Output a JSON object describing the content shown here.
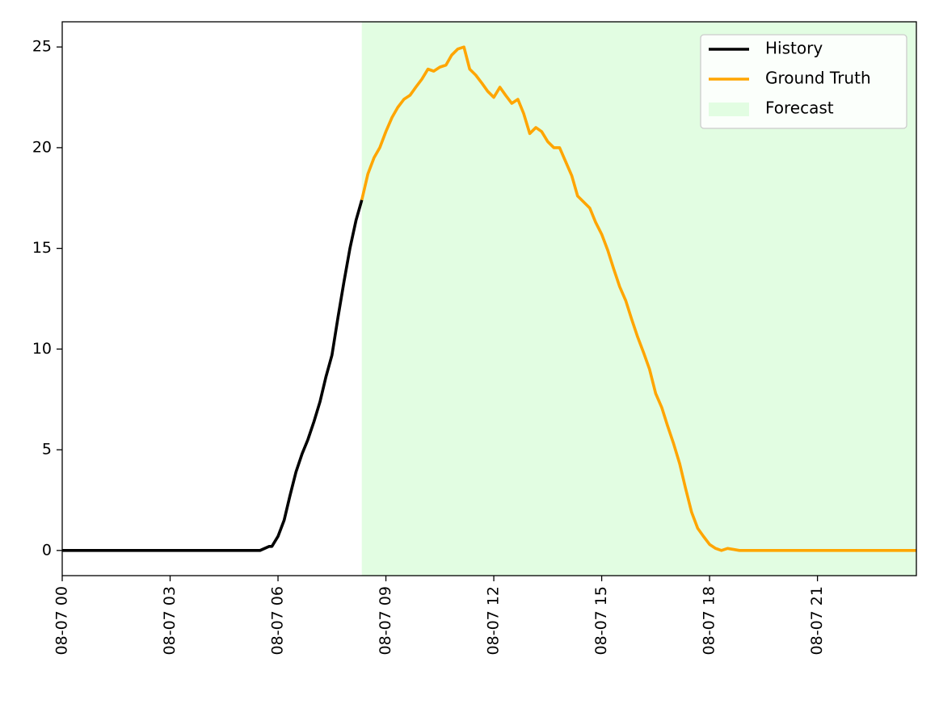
{
  "chart_data": {
    "type": "line",
    "title": "",
    "xlabel": "",
    "ylabel": "",
    "x_unit": "hours",
    "xlim": [
      0,
      23.75
    ],
    "ylim": [
      -1.25,
      26.25
    ],
    "x_ticks": [
      {
        "x": 0,
        "label": "08-07 00"
      },
      {
        "x": 3,
        "label": "08-07 03"
      },
      {
        "x": 6,
        "label": "08-07 06"
      },
      {
        "x": 9,
        "label": "08-07 09"
      },
      {
        "x": 12,
        "label": "08-07 12"
      },
      {
        "x": 15,
        "label": "08-07 15"
      },
      {
        "x": 18,
        "label": "08-07 18"
      },
      {
        "x": 21,
        "label": "08-07 21"
      }
    ],
    "y_ticks": [
      {
        "y": 0,
        "label": "0"
      },
      {
        "y": 5,
        "label": "5"
      },
      {
        "y": 10,
        "label": "10"
      },
      {
        "y": 15,
        "label": "15"
      },
      {
        "y": 20,
        "label": "20"
      },
      {
        "y": 25,
        "label": "25"
      }
    ],
    "forecast_region": {
      "start": 8.33,
      "end": 23.75,
      "color": "#e2fde2"
    },
    "legend": {
      "position": "top-right",
      "entries": [
        {
          "label": "History",
          "color": "#000000",
          "kind": "line"
        },
        {
          "label": "Ground Truth",
          "color": "#ffa500",
          "kind": "line"
        },
        {
          "label": "Forecast",
          "color": "#e2fde2",
          "kind": "patch"
        }
      ]
    },
    "series": [
      {
        "name": "History",
        "color": "#000000",
        "x": [
          0,
          0.5,
          1,
          1.5,
          2,
          2.5,
          3,
          3.5,
          4,
          4.5,
          5,
          5.5,
          5.75,
          5.83,
          6.0,
          6.17,
          6.33,
          6.5,
          6.67,
          6.83,
          7.0,
          7.17,
          7.33,
          7.5,
          7.67,
          7.83,
          8.0,
          8.17,
          8.33
        ],
        "y": [
          0,
          0,
          0,
          0,
          0,
          0,
          0,
          0,
          0,
          0,
          0,
          0,
          0.2,
          0.2,
          0.7,
          1.5,
          2.7,
          3.9,
          4.8,
          5.5,
          6.4,
          7.4,
          8.6,
          9.7,
          11.6,
          13.3,
          15.0,
          16.4,
          17.4
        ]
      },
      {
        "name": "Ground Truth",
        "color": "#ffa500",
        "x": [
          8.33,
          8.5,
          8.67,
          8.83,
          9.0,
          9.17,
          9.33,
          9.5,
          9.67,
          9.83,
          10.0,
          10.17,
          10.33,
          10.5,
          10.67,
          10.83,
          11.0,
          11.17,
          11.33,
          11.5,
          11.67,
          11.83,
          12.0,
          12.17,
          12.33,
          12.5,
          12.67,
          12.83,
          13.0,
          13.17,
          13.33,
          13.5,
          13.67,
          13.83,
          14.0,
          14.17,
          14.33,
          14.5,
          14.67,
          14.83,
          15.0,
          15.17,
          15.33,
          15.5,
          15.67,
          15.83,
          16.0,
          16.17,
          16.33,
          16.5,
          16.67,
          16.83,
          17.0,
          17.17,
          17.33,
          17.5,
          17.67,
          17.83,
          18.0,
          18.17,
          18.33,
          18.5,
          18.67,
          18.83,
          19.0,
          19.5,
          20.0,
          20.5,
          21.0,
          21.5,
          22.0,
          22.5,
          23.0,
          23.5,
          23.75
        ],
        "y": [
          17.4,
          18.7,
          19.5,
          20.0,
          20.8,
          21.5,
          22.0,
          22.4,
          22.6,
          23.0,
          23.4,
          23.9,
          23.8,
          24.0,
          24.1,
          24.6,
          24.9,
          25.0,
          23.9,
          23.6,
          23.2,
          22.8,
          22.5,
          23.0,
          22.6,
          22.2,
          22.4,
          21.7,
          20.7,
          21.0,
          20.8,
          20.3,
          20.0,
          20.0,
          19.3,
          18.6,
          17.6,
          17.3,
          17.0,
          16.3,
          15.7,
          14.9,
          14.0,
          13.1,
          12.4,
          11.5,
          10.6,
          9.8,
          9.0,
          7.8,
          7.1,
          6.2,
          5.3,
          4.3,
          3.1,
          1.9,
          1.1,
          0.7,
          0.3,
          0.1,
          0.0,
          0.1,
          0.05,
          0.0,
          0.0,
          0.0,
          0.0,
          0.0,
          0.0,
          0.0,
          0.0,
          0.0,
          0.0,
          0.0,
          0.0
        ]
      }
    ]
  }
}
